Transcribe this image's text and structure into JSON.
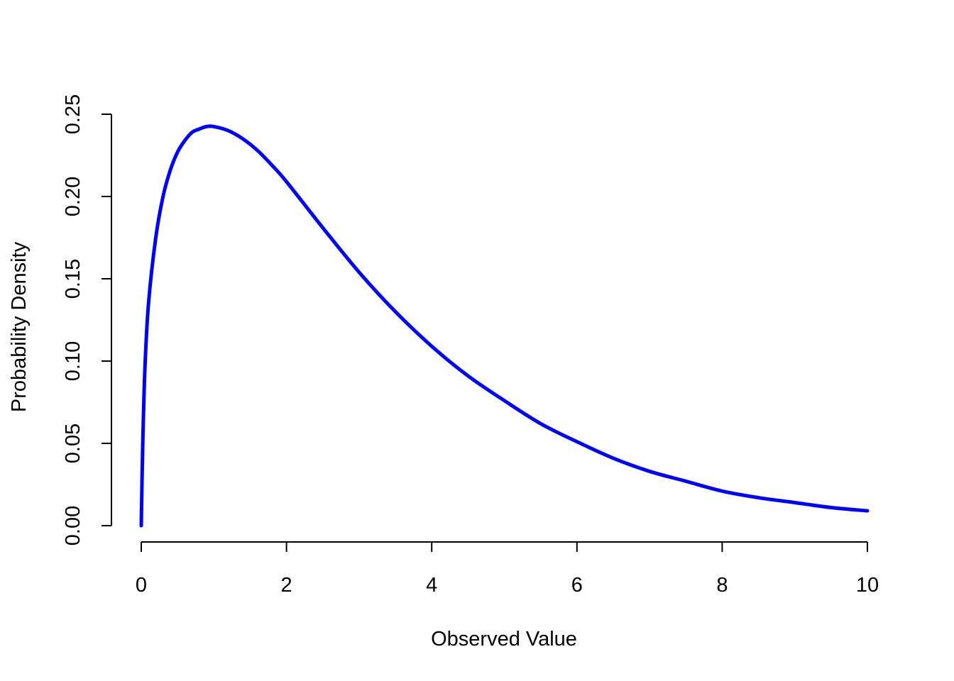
{
  "chart_data": {
    "type": "line",
    "xlabel": "Observed Value",
    "ylabel": "Probability Density",
    "xlim": [
      0,
      10
    ],
    "ylim": [
      0,
      0.25
    ],
    "x_ticks": [
      0,
      2,
      4,
      6,
      8,
      10
    ],
    "x_tick_labels": [
      "0",
      "2",
      "4",
      "6",
      "8",
      "10"
    ],
    "y_ticks": [
      0,
      0.05,
      0.1,
      0.15,
      0.2,
      0.25
    ],
    "y_tick_labels": [
      "0.00",
      "0.05",
      "0.10",
      "0.15",
      "0.20",
      "0.25"
    ],
    "grid": false,
    "series": [
      {
        "color": "#0000ff",
        "x": [
          0,
          0.02,
          0.05,
          0.1,
          0.2,
          0.3,
          0.4,
          0.5,
          0.6,
          0.7,
          0.8,
          0.9,
          1.0,
          1.2,
          1.4,
          1.6,
          1.8,
          2.0,
          2.5,
          3.0,
          3.5,
          4.0,
          4.5,
          5.0,
          5.5,
          6.0,
          6.5,
          7.0,
          7.5,
          8.0,
          8.5,
          9.0,
          9.5,
          10.0
        ],
        "y": [
          0,
          0.048,
          0.095,
          0.135,
          0.175,
          0.2,
          0.216,
          0.227,
          0.234,
          0.239,
          0.241,
          0.2425,
          0.2425,
          0.24,
          0.235,
          0.228,
          0.219,
          0.209,
          0.181,
          0.154,
          0.13,
          0.109,
          0.091,
          0.076,
          0.062,
          0.051,
          0.041,
          0.033,
          0.027,
          0.021,
          0.017,
          0.014,
          0.011,
          0.009
        ]
      }
    ]
  }
}
